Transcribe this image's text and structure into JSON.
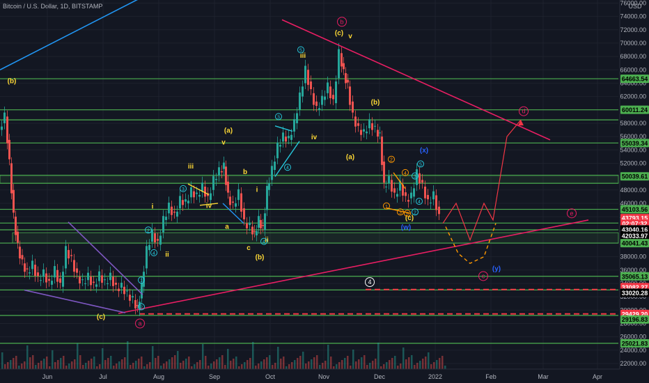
{
  "header": {
    "title": "Bitcoin / U.S. Dollar, 1D, BITSTAMP",
    "currency": "USD"
  },
  "chart_data": {
    "type": "candlestick",
    "y_axis_side": "right",
    "ylim": [
      20500,
      77000
    ],
    "y_ticks": [
      22000,
      24000,
      26000,
      28000,
      30000,
      32000,
      34000,
      36000,
      38000,
      40000,
      42000,
      44000,
      46000,
      48000,
      50000,
      52000,
      54000,
      56000,
      58000,
      60000,
      62000,
      64000,
      66000,
      68000,
      70000,
      72000,
      74000,
      76000
    ],
    "x_ticks": [
      "Jun",
      "Jul",
      "Aug",
      "Sep",
      "Oct",
      "Nov",
      "Dec",
      "2022",
      "Feb",
      "Mar",
      "Apr"
    ],
    "price_tags": [
      {
        "label": "64663.54",
        "value": 64663.54,
        "bg": "#4caf50",
        "fg": "#000000"
      },
      {
        "label": "60011.24",
        "value": 60011.24,
        "bg": "#4caf50",
        "fg": "#000000"
      },
      {
        "label": "55039.34",
        "value": 55039.34,
        "bg": "#4caf50",
        "fg": "#000000"
      },
      {
        "label": "50039.61",
        "value": 50039.61,
        "bg": "#4caf50",
        "fg": "#000000"
      },
      {
        "label": "45103.56",
        "value": 45103.56,
        "bg": "#4caf50",
        "fg": "#000000"
      },
      {
        "label": "43793.15",
        "value": 43793.15,
        "bg": "#f23645",
        "fg": "#ffffff"
      },
      {
        "label": "02:07:32",
        "value": 42950,
        "bg": "#f23645",
        "fg": "#ffffff"
      },
      {
        "label": "43040.16",
        "value": 42100,
        "bg": "#000000",
        "fg": "#ffffff"
      },
      {
        "label": "42033.97",
        "value": 41150,
        "bg": "#000000",
        "fg": "#ffffff"
      },
      {
        "label": "40041.43",
        "value": 40041.43,
        "bg": "#4caf50",
        "fg": "#000000"
      },
      {
        "label": "35065.13",
        "value": 35065.13,
        "bg": "#4caf50",
        "fg": "#000000"
      },
      {
        "label": "33082.27",
        "value": 33450,
        "bg": "#f23645",
        "fg": "#ffffff"
      },
      {
        "label": "33020.28",
        "value": 32600,
        "bg": "#000000",
        "fg": "#ffffff"
      },
      {
        "label": "29429.20",
        "value": 29429.2,
        "bg": "#f23645",
        "fg": "#ffffff"
      },
      {
        "label": "29196.83",
        "value": 28600,
        "bg": "#4caf50",
        "fg": "#000000"
      },
      {
        "label": "25021.83",
        "value": 25021.83,
        "bg": "#4caf50",
        "fg": "#000000"
      }
    ],
    "support_resistance_levels": [
      64663.54,
      60011.24,
      58500,
      55039.34,
      50200,
      49000,
      45103.56,
      43040.16,
      42033.97,
      40041.43,
      35065.13,
      33020.28,
      29196.83,
      25021.83
    ],
    "dashed_levels": [
      {
        "value": 33082.27,
        "color": "#f23645",
        "from_x": 525
      },
      {
        "value": 29429.2,
        "color": "#f23645",
        "from_x": 200
      }
    ],
    "ohlc_close_path": [
      {
        "x": 0,
        "close": 57000
      },
      {
        "x": 8,
        "close": 59000
      },
      {
        "x": 14,
        "close": 52000
      },
      {
        "x": 20,
        "close": 44000
      },
      {
        "x": 26,
        "close": 39500
      },
      {
        "x": 33,
        "close": 37000
      },
      {
        "x": 40,
        "close": 35500
      },
      {
        "x": 48,
        "close": 36800
      },
      {
        "x": 56,
        "close": 34500
      },
      {
        "x": 64,
        "close": 35500
      },
      {
        "x": 72,
        "close": 33800
      },
      {
        "x": 80,
        "close": 36000
      },
      {
        "x": 88,
        "close": 33500
      },
      {
        "x": 96,
        "close": 39000
      },
      {
        "x": 104,
        "close": 37500
      },
      {
        "x": 112,
        "close": 35000
      },
      {
        "x": 120,
        "close": 34000
      },
      {
        "x": 128,
        "close": 35000
      },
      {
        "x": 136,
        "close": 33500
      },
      {
        "x": 144,
        "close": 35200
      },
      {
        "x": 152,
        "close": 34000
      },
      {
        "x": 160,
        "close": 35000
      },
      {
        "x": 168,
        "close": 33200
      },
      {
        "x": 176,
        "close": 33500
      },
      {
        "x": 184,
        "close": 32300
      },
      {
        "x": 192,
        "close": 31500
      },
      {
        "x": 198,
        "close": 30000
      },
      {
        "x": 204,
        "close": 33500
      },
      {
        "x": 212,
        "close": 39000
      },
      {
        "x": 220,
        "close": 41500
      },
      {
        "x": 228,
        "close": 39800
      },
      {
        "x": 236,
        "close": 43500
      },
      {
        "x": 244,
        "close": 45500
      },
      {
        "x": 252,
        "close": 44000
      },
      {
        "x": 260,
        "close": 46500
      },
      {
        "x": 268,
        "close": 46000
      },
      {
        "x": 276,
        "close": 47800
      },
      {
        "x": 284,
        "close": 47000
      },
      {
        "x": 292,
        "close": 48500
      },
      {
        "x": 300,
        "close": 46500
      },
      {
        "x": 308,
        "close": 49500
      },
      {
        "x": 316,
        "close": 50800
      },
      {
        "x": 322,
        "close": 51500
      },
      {
        "x": 328,
        "close": 47000
      },
      {
        "x": 336,
        "close": 45500
      },
      {
        "x": 344,
        "close": 47500
      },
      {
        "x": 352,
        "close": 43000
      },
      {
        "x": 360,
        "close": 42500
      },
      {
        "x": 366,
        "close": 41200
      },
      {
        "x": 372,
        "close": 43500
      },
      {
        "x": 378,
        "close": 42000
      },
      {
        "x": 384,
        "close": 48000
      },
      {
        "x": 392,
        "close": 51000
      },
      {
        "x": 400,
        "close": 54500
      },
      {
        "x": 408,
        "close": 56000
      },
      {
        "x": 416,
        "close": 55500
      },
      {
        "x": 424,
        "close": 58000
      },
      {
        "x": 432,
        "close": 62000
      },
      {
        "x": 440,
        "close": 66000
      },
      {
        "x": 448,
        "close": 62500
      },
      {
        "x": 456,
        "close": 60000
      },
      {
        "x": 464,
        "close": 61500
      },
      {
        "x": 472,
        "close": 63500
      },
      {
        "x": 480,
        "close": 61000
      },
      {
        "x": 488,
        "close": 68500
      },
      {
        "x": 494,
        "close": 65500
      },
      {
        "x": 500,
        "close": 63500
      },
      {
        "x": 508,
        "close": 59000
      },
      {
        "x": 516,
        "close": 57000
      },
      {
        "x": 524,
        "close": 56500
      },
      {
        "x": 532,
        "close": 58000
      },
      {
        "x": 540,
        "close": 57000
      },
      {
        "x": 546,
        "close": 56000
      },
      {
        "x": 552,
        "close": 48500
      },
      {
        "x": 560,
        "close": 49500
      },
      {
        "x": 568,
        "close": 47000
      },
      {
        "x": 576,
        "close": 48800
      },
      {
        "x": 584,
        "close": 46500
      },
      {
        "x": 592,
        "close": 47000
      },
      {
        "x": 600,
        "close": 50500
      },
      {
        "x": 608,
        "close": 48500
      },
      {
        "x": 616,
        "close": 46000
      },
      {
        "x": 624,
        "close": 47200
      },
      {
        "x": 632,
        "close": 43793.15
      }
    ],
    "projection_red": [
      {
        "x": 636,
        "close": 43000
      },
      {
        "x": 655,
        "close": 46000
      },
      {
        "x": 675,
        "close": 40500
      },
      {
        "x": 695,
        "close": 46000
      },
      {
        "x": 708,
        "close": 43500
      },
      {
        "x": 728,
        "close": 56000
      },
      {
        "x": 748,
        "close": 58500
      }
    ],
    "projection_orange_dashed": [
      {
        "x": 640,
        "close": 42500
      },
      {
        "x": 658,
        "close": 38500
      },
      {
        "x": 675,
        "close": 37000
      },
      {
        "x": 695,
        "close": 38000
      },
      {
        "x": 712,
        "close": 43000
      }
    ],
    "trendlines": [
      {
        "name": "pink-channel-top",
        "color": "#e91e63",
        "from": {
          "x": 405,
          "close": 73500
        },
        "to": {
          "x": 790,
          "close": 55500
        }
      },
      {
        "name": "pink-support",
        "color": "#e91e63",
        "from": {
          "x": 170,
          "close": 29500
        },
        "to": {
          "x": 845,
          "close": 43500
        }
      },
      {
        "name": "blue-top-left",
        "color": "#2196f3",
        "from": {
          "x": 0,
          "close": 66000
        },
        "to": {
          "x": 272,
          "close": 80500
        }
      },
      {
        "name": "purple-channel-top",
        "color": "#7e57c2",
        "from": {
          "x": 98,
          "close": 43200
        },
        "to": {
          "x": 205,
          "close": 32300
        }
      },
      {
        "name": "purple-channel-bottom",
        "color": "#7e57c2",
        "from": {
          "x": 35,
          "close": 33000
        },
        "to": {
          "x": 180,
          "close": 29600
        }
      }
    ],
    "wave_labels": [
      {
        "text": "(b)",
        "x": 17,
        "close": 64000,
        "color": "#fdd835"
      },
      {
        "text": "(c)",
        "x": 145,
        "close": 28700,
        "color": "#fdd835"
      },
      {
        "text": "(a)",
        "x": 328,
        "close": 56600,
        "color": "#fdd835"
      },
      {
        "text": "v",
        "x": 321,
        "close": 54800,
        "color": "#fdd835"
      },
      {
        "text": "iii",
        "x": 274,
        "close": 51200,
        "color": "#fdd835"
      },
      {
        "text": "iv",
        "x": 300,
        "close": 45300,
        "color": "#fdd835"
      },
      {
        "text": "b",
        "x": 352,
        "close": 50400,
        "color": "#fdd835"
      },
      {
        "text": "i",
        "x": 219,
        "close": 45200,
        "color": "#fdd835"
      },
      {
        "text": "ii",
        "x": 240,
        "close": 38000,
        "color": "#fdd835"
      },
      {
        "text": "a",
        "x": 326,
        "close": 42200,
        "color": "#fdd835"
      },
      {
        "text": "c",
        "x": 357,
        "close": 39000,
        "color": "#fdd835"
      },
      {
        "text": "(b)",
        "x": 373,
        "close": 37600,
        "color": "#fdd835"
      },
      {
        "text": "ii",
        "x": 383,
        "close": 40200,
        "color": "#fdd835"
      },
      {
        "text": "i",
        "x": 369,
        "close": 47700,
        "color": "#fdd835"
      },
      {
        "text": "iii",
        "x": 435,
        "close": 67800,
        "color": "#fdd835"
      },
      {
        "text": "iv",
        "x": 451,
        "close": 55600,
        "color": "#fdd835"
      },
      {
        "text": "(c)",
        "x": 487,
        "close": 71200,
        "color": "#fdd835"
      },
      {
        "text": "v",
        "x": 503,
        "close": 70700,
        "color": "#fdd835"
      },
      {
        "text": "(b)",
        "x": 539,
        "close": 60800,
        "color": "#fdd835"
      },
      {
        "text": "(a)",
        "x": 503,
        "close": 52600,
        "color": "#fdd835"
      },
      {
        "text": "(c)",
        "x": 588,
        "close": 43500,
        "color": "#fdd835"
      },
      {
        "text": "(x)",
        "x": 609,
        "close": 53600,
        "color": "#2962ff"
      },
      {
        "text": "(w)",
        "x": 583,
        "close": 42100,
        "color": "#2962ff"
      },
      {
        "text": "(y)",
        "x": 713,
        "close": 35900,
        "color": "#2962ff"
      }
    ],
    "circled_labels": [
      {
        "text": "b",
        "x": 491,
        "close": 73200,
        "color": "#e91e63"
      },
      {
        "text": "d",
        "x": 752,
        "close": 59800,
        "color": "#e91e63"
      },
      {
        "text": "e",
        "x": 821,
        "close": 44500,
        "color": "#e91e63"
      },
      {
        "text": "c",
        "x": 694,
        "close": 35100,
        "color": "#e91e63"
      },
      {
        "text": "a",
        "x": 201,
        "close": 28000,
        "color": "#e91e63"
      },
      {
        "text": "4",
        "x": 531,
        "close": 34200,
        "color": "#ffffff"
      },
      {
        "text": "5",
        "x": 432,
        "close": 69000,
        "color": "#26c6da"
      },
      {
        "text": "3",
        "x": 400,
        "close": 59000,
        "color": "#26c6da"
      },
      {
        "text": "4",
        "x": 413,
        "close": 51400,
        "color": "#26c6da"
      },
      {
        "text": "3",
        "x": 263,
        "close": 48200,
        "color": "#26c6da"
      },
      {
        "text": "4",
        "x": 221,
        "close": 38600,
        "color": "#26c6da"
      },
      {
        "text": "2",
        "x": 213,
        "close": 42000,
        "color": "#26c6da"
      },
      {
        "text": "1",
        "x": 203,
        "close": 34500,
        "color": "#26c6da"
      },
      {
        "text": "2",
        "x": 203,
        "close": 30500,
        "color": "#26c6da"
      },
      {
        "text": "2",
        "x": 562,
        "close": 52600,
        "color": "#ff9800"
      },
      {
        "text": "4",
        "x": 582,
        "close": 50600,
        "color": "#ff9800"
      },
      {
        "text": "5",
        "x": 604,
        "close": 51900,
        "color": "#26c6da"
      },
      {
        "text": "3",
        "x": 596,
        "close": 50100,
        "color": "#26c6da"
      },
      {
        "text": "4",
        "x": 602,
        "close": 46300,
        "color": "#26c6da"
      },
      {
        "text": "2",
        "x": 596,
        "close": 44700,
        "color": "#26c6da"
      },
      {
        "text": "1",
        "x": 555,
        "close": 45600,
        "color": "#ff9800"
      },
      {
        "text": "3",
        "x": 575,
        "close": 44700,
        "color": "#ff9800"
      },
      {
        "text": "5",
        "x": 585,
        "close": 44500,
        "color": "#ff9800"
      },
      {
        "text": "4",
        "x": 379,
        "close": 40300,
        "color": "#26c6da"
      }
    ]
  }
}
